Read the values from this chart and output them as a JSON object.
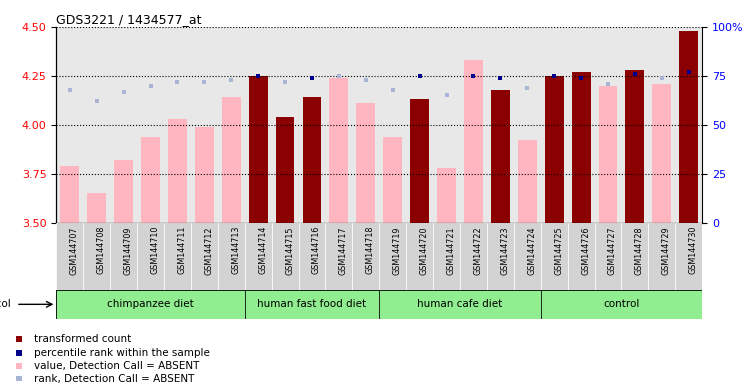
{
  "title": "GDS3221 / 1434577_at",
  "samples": [
    "GSM144707",
    "GSM144708",
    "GSM144709",
    "GSM144710",
    "GSM144711",
    "GSM144712",
    "GSM144713",
    "GSM144714",
    "GSM144715",
    "GSM144716",
    "GSM144717",
    "GSM144718",
    "GSM144719",
    "GSM144720",
    "GSM144721",
    "GSM144722",
    "GSM144723",
    "GSM144724",
    "GSM144725",
    "GSM144726",
    "GSM144727",
    "GSM144728",
    "GSM144729",
    "GSM144730"
  ],
  "groups": [
    {
      "label": "chimpanzee diet",
      "start": 0,
      "end": 7
    },
    {
      "label": "human fast food diet",
      "start": 7,
      "end": 12
    },
    {
      "label": "human cafe diet",
      "start": 12,
      "end": 18
    },
    {
      "label": "control",
      "start": 18,
      "end": 24
    }
  ],
  "values": [
    3.79,
    3.65,
    3.82,
    3.94,
    4.03,
    3.99,
    4.14,
    4.25,
    4.04,
    4.14,
    4.24,
    4.11,
    3.94,
    4.13,
    3.78,
    4.33,
    4.18,
    3.92,
    4.25,
    4.27,
    4.2,
    4.28,
    4.21,
    4.48
  ],
  "ranks": [
    68,
    62,
    67,
    70,
    72,
    72,
    73,
    75,
    72,
    74,
    75,
    73,
    68,
    75,
    65,
    75,
    74,
    69,
    75,
    74,
    71,
    76,
    74,
    77
  ],
  "is_absent_value": [
    true,
    true,
    true,
    true,
    true,
    true,
    true,
    false,
    false,
    false,
    true,
    true,
    true,
    false,
    true,
    true,
    false,
    true,
    false,
    false,
    true,
    false,
    true,
    false
  ],
  "is_absent_rank": [
    true,
    true,
    true,
    true,
    true,
    true,
    true,
    false,
    true,
    false,
    true,
    true,
    true,
    false,
    true,
    false,
    false,
    true,
    false,
    false,
    true,
    false,
    true,
    false
  ],
  "ylim_left": [
    3.5,
    4.5
  ],
  "ylim_right": [
    0,
    100
  ],
  "yticks_left": [
    3.5,
    3.75,
    4.0,
    4.25,
    4.5
  ],
  "yticks_right": [
    0,
    25,
    50,
    75,
    100
  ],
  "color_dark_red": "#8B0000",
  "color_light_pink": "#FFB6C1",
  "color_dark_blue": "#00008B",
  "color_light_blue": "#aab4d4",
  "background_bar": "#d3d3d3",
  "background_group": "#90ee90",
  "group_boundaries": [
    0,
    7,
    12,
    18,
    24
  ]
}
